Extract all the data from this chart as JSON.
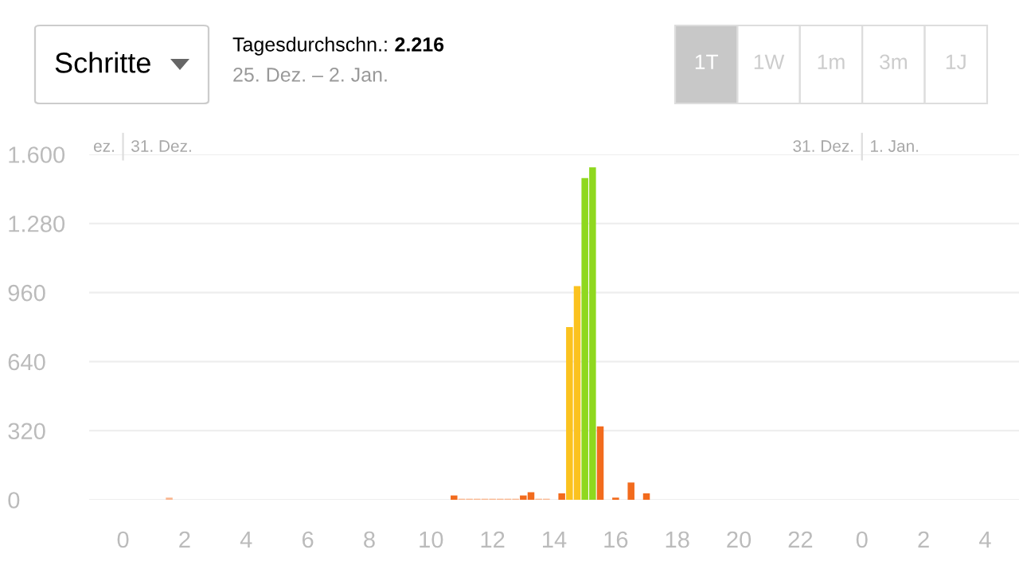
{
  "chart_data": {
    "type": "bar",
    "title": "Schritte",
    "subtitle": "Tagesdurchschn.: 2.216",
    "annotations": [
      "25. Dez. – 2. Jan.",
      "1T",
      "1W",
      "1m",
      "3m",
      "1J",
      "ez.",
      "31. Dez.",
      "31. Dez.",
      "1. Jan."
    ],
    "categories": [
      "0",
      null,
      null,
      null,
      null,
      null,
      null,
      null,
      "2",
      null,
      null,
      null,
      null,
      null,
      null,
      null,
      "4",
      null,
      null,
      null,
      null,
      null,
      null,
      null,
      "6",
      null,
      null,
      null,
      null,
      null,
      null,
      null,
      "8",
      null,
      null,
      null,
      null,
      null,
      null,
      null,
      "10",
      null,
      null,
      null,
      null,
      null,
      null,
      null,
      "12",
      null,
      null,
      null,
      null,
      null,
      null,
      null,
      "14",
      null,
      null,
      null,
      null,
      null,
      null,
      null,
      "16",
      null,
      null,
      null,
      null,
      null,
      null,
      null,
      "18",
      null,
      null,
      null,
      null,
      null,
      null,
      null,
      "20",
      null,
      null,
      null,
      null,
      null,
      null,
      null,
      "22",
      null,
      null,
      null,
      null,
      null,
      null,
      null,
      "0",
      null,
      null,
      null,
      null,
      null,
      null,
      null,
      "2",
      null,
      null,
      null,
      null,
      null,
      null,
      null,
      "4"
    ],
    "values": [
      null,
      null,
      null,
      null,
      null,
      null,
      10,
      null,
      null,
      null,
      null,
      null,
      null,
      null,
      null,
      null,
      null,
      null,
      null,
      null,
      null,
      null,
      null,
      null,
      null,
      null,
      null,
      null,
      null,
      null,
      null,
      null,
      null,
      null,
      null,
      null,
      null,
      null,
      null,
      null,
      null,
      null,
      null,
      20,
      5,
      5,
      5,
      5,
      5,
      5,
      5,
      5,
      20,
      35,
      5,
      5,
      null,
      30,
      800,
      990,
      1490,
      1540,
      340,
      null,
      10,
      null,
      80,
      null,
      30,
      null,
      null,
      null,
      null,
      null,
      null,
      null,
      null,
      null,
      null,
      null,
      null,
      null,
      null,
      null,
      null,
      null,
      null,
      null,
      null,
      null,
      null,
      null,
      null,
      null,
      null,
      null,
      null,
      null,
      null,
      null,
      null,
      null,
      null,
      null,
      null,
      null,
      null,
      null,
      null,
      null,
      null,
      null,
      null
    ],
    "colors": [
      null,
      null,
      null,
      null,
      null,
      null,
      "#f9b68f",
      null,
      null,
      null,
      null,
      null,
      null,
      null,
      null,
      null,
      null,
      null,
      null,
      null,
      null,
      null,
      null,
      null,
      null,
      null,
      null,
      null,
      null,
      null,
      null,
      null,
      null,
      null,
      null,
      null,
      null,
      null,
      null,
      null,
      null,
      null,
      null,
      "#f26b1d",
      "#f9b68f",
      "#f9b68f",
      "#f9b68f",
      "#f9b68f",
      "#f9b68f",
      "#f9b68f",
      "#f9b68f",
      "#f9b68f",
      "#f26b1d",
      "#f26b1d",
      "#f9b68f",
      "#f9b68f",
      null,
      "#f26b1d",
      "#fbc21f",
      "#fbc21f",
      "#8fd81e",
      "#8fd81e",
      "#f26b1d",
      null,
      "#f26b1d",
      null,
      "#f26b1d",
      null,
      "#f26b1d",
      null,
      null,
      null,
      null,
      null,
      null,
      null,
      null,
      null,
      null,
      null,
      null,
      null,
      null,
      null,
      null,
      null,
      null,
      null,
      null,
      null,
      null,
      null,
      null,
      null,
      null,
      null,
      null,
      null,
      null,
      null,
      null,
      null,
      null,
      null,
      null,
      null,
      null,
      null,
      null,
      null,
      null,
      null,
      null
    ],
    "ylim": [
      0,
      1600
    ],
    "yticks": [
      0,
      320,
      640,
      960,
      {
        "value": 1280,
        "label": "1.280"
      },
      {
        "value": 1600,
        "label": "1.600"
      }
    ],
    "grid": "y"
  }
}
